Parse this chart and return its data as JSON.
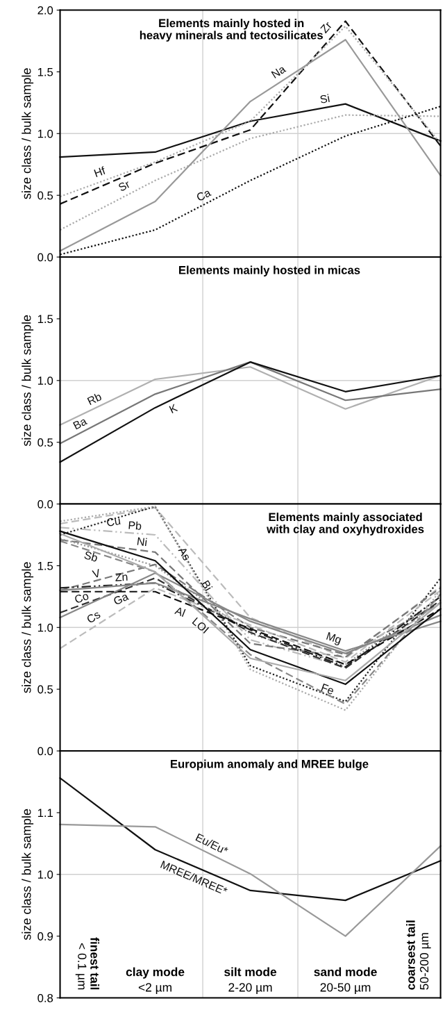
{
  "chart_data": [
    {
      "type": "line",
      "title": "Elements mainly hosted in\nheavy minerals and tectosilicates",
      "ylabel": "size class / bulk sample",
      "categories": [
        null,
        null,
        null,
        null,
        null
      ],
      "ylim": [
        0,
        2.0
      ],
      "yticks": [
        {
          "value": 0,
          "label": "0.0"
        },
        0.5,
        {
          "value": 1,
          "label": "1.0"
        },
        1.5,
        {
          "value": 2,
          "label": "2.0"
        }
      ],
      "tick_labels": "y",
      "grid": false,
      "ref_lines": [
        {
          "axis": "y",
          "value": 1,
          "color": "#d0d0d0"
        }
      ],
      "series": [
        {
          "name": "Si",
          "color": "#111111",
          "line_style": "solid",
          "values": [
            0.81,
            0.85,
            1.1,
            1.24,
            0.94
          ]
        },
        {
          "name": "Zr",
          "color": "#111111",
          "line_style": "dashed",
          "values": [
            0.43,
            0.76,
            1.03,
            1.91,
            0.9
          ]
        },
        {
          "name": "Hf",
          "color": "#aaaaaa",
          "line_style": "dotted",
          "values": [
            0.49,
            0.77,
            1.1,
            1.87,
            0.92
          ]
        },
        {
          "name": "Sr",
          "color": "#aaaaaa",
          "line_style": "dotted",
          "values": [
            0.22,
            0.62,
            0.96,
            1.15,
            1.14
          ]
        },
        {
          "name": "Na",
          "color": "#999999",
          "line_style": "solid",
          "values": [
            0.05,
            0.45,
            1.26,
            1.76,
            0.66
          ]
        },
        {
          "name": "Ca",
          "color": "#111111",
          "line_style": "dotted",
          "values": [
            0.02,
            0.22,
            0.62,
            0.98,
            1.22
          ]
        }
      ]
    },
    {
      "type": "line",
      "title": "Elements mainly hosted in micas",
      "ylabel": "size class / bulk sample",
      "categories": [
        null,
        null,
        null,
        null,
        null
      ],
      "ylim": [
        0,
        2.0
      ],
      "yticks": [
        {
          "value": 0,
          "label": "0.0"
        },
        0.5,
        {
          "value": 1,
          "label": "1.0"
        },
        1.5
      ],
      "tick_labels": "y",
      "grid": false,
      "ref_lines": [
        {
          "axis": "y",
          "value": 1,
          "color": "#d0d0d0"
        }
      ],
      "series": [
        {
          "name": "Rb",
          "color": "#b0b0b0",
          "line_style": "solid",
          "values": [
            0.64,
            1.01,
            1.11,
            0.77,
            1.04
          ]
        },
        {
          "name": "Ba",
          "color": "#777777",
          "line_style": "solid",
          "values": [
            0.49,
            0.89,
            1.15,
            0.84,
            0.93
          ]
        },
        {
          "name": "K",
          "color": "#111111",
          "line_style": "solid",
          "values": [
            0.34,
            0.78,
            1.15,
            0.91,
            1.04
          ]
        }
      ]
    },
    {
      "type": "line",
      "title": "Elements mainly associated\nwith clay and oxyhydroxides",
      "ylabel": "size class / bulk sample",
      "categories": [
        null,
        null,
        null,
        null,
        null
      ],
      "ylim": [
        0,
        2.0
      ],
      "yticks": [
        {
          "value": 0,
          "label": "0.0"
        },
        0.5,
        {
          "value": 1,
          "label": "1.0"
        },
        1.5
      ],
      "tick_labels": "y",
      "grid": false,
      "ref_lines": [
        {
          "axis": "y",
          "value": 1,
          "color": "#d0d0d0"
        }
      ],
      "series": [
        {
          "name": "Cu",
          "color": "#bbbbbb",
          "line_style": "dashed",
          "values": [
            1.84,
            1.97,
            1.08,
            0.75,
            1.33
          ]
        },
        {
          "name": "As",
          "color": "#222222",
          "line_style": "dotted",
          "values": [
            1.75,
            1.98,
            0.69,
            0.4,
            1.4
          ]
        },
        {
          "name": "Bi",
          "color": "#aaaaaa",
          "line_style": "dotted",
          "values": [
            1.86,
            1.98,
            0.66,
            0.33,
            1.3
          ]
        },
        {
          "name": "Pb",
          "color": "#bbbbbb",
          "line_style": "dashdot",
          "values": [
            1.81,
            1.75,
            0.9,
            0.68,
            1.2
          ]
        },
        {
          "name": "Ni",
          "color": "#777777",
          "line_style": "dashed",
          "values": [
            1.71,
            1.61,
            0.87,
            0.76,
            1.32
          ]
        },
        {
          "name": "Sb",
          "color": "#999999",
          "line_style": "dotted",
          "values": [
            1.72,
            1.5,
            0.95,
            0.7,
            1.25
          ]
        },
        {
          "name": "V",
          "color": "#777777",
          "line_style": "dashed",
          "values": [
            1.3,
            1.51,
            1.0,
            0.78,
            1.2
          ]
        },
        {
          "name": "Zn",
          "color": "#222222",
          "line_style": "dashdot",
          "values": [
            1.32,
            1.36,
            0.98,
            0.68,
            1.25
          ]
        },
        {
          "name": "Co",
          "color": "#333333",
          "line_style": "dashed",
          "values": [
            1.12,
            1.4,
            0.96,
            0.67,
            1.22
          ]
        },
        {
          "name": "Ga",
          "color": "#888888",
          "line_style": "solid",
          "values": [
            1.08,
            1.44,
            1.05,
            0.79,
            1.1
          ]
        },
        {
          "name": "Al",
          "color": "#111111",
          "line_style": "dashed",
          "values": [
            1.29,
            1.29,
            0.99,
            0.7,
            1.15
          ]
        },
        {
          "name": "Cs",
          "color": "#bbbbbb",
          "line_style": "dashed",
          "values": [
            0.83,
            1.32,
            1.02,
            0.72,
            1.3
          ]
        },
        {
          "name": "LOI",
          "color": "#888888",
          "line_style": "dashed",
          "values": [
            1.7,
            1.45,
            0.78,
            0.38,
            1.27
          ]
        },
        {
          "name": "Mg",
          "color": "#888888",
          "line_style": "solid",
          "values": [
            1.3,
            1.36,
            1.07,
            0.81,
            1.05
          ]
        },
        {
          "name": "Fe",
          "color": "#111111",
          "line_style": "solid",
          "values": [
            1.78,
            1.54,
            0.82,
            0.54,
            1.15
          ]
        },
        {
          "color": "#aaaaaa",
          "line_style": "solid",
          "values": [
            1.76,
            1.45,
            0.75,
            0.57,
            1.2
          ]
        }
      ]
    },
    {
      "type": "line",
      "title": "Europium anomaly and MREE bulge",
      "ylabel": "size class / bulk sample",
      "categories": [
        "finest tail\n< 0.1 µm",
        "clay mode\n<2 µm",
        "silt mode\n2-20 µm",
        "sand mode\n20-50 µm",
        "coarsest tail\n50-200 µm"
      ],
      "ylim": [
        0.8,
        1.2
      ],
      "yticks": [
        0.8,
        0.9,
        {
          "value": 1,
          "label": "1.0"
        },
        1.1
      ],
      "tick_labels": "y",
      "grid": false,
      "ref_lines": [
        {
          "axis": "y",
          "value": 1,
          "color": "#d0d0d0"
        }
      ],
      "series": [
        {
          "name": "MREE/MREE*",
          "color": "#111111",
          "line_style": "solid",
          "values": [
            1.156,
            1.04,
            0.974,
            0.958,
            1.022
          ]
        },
        {
          "name": "Eu/Eu*",
          "color": "#999999",
          "line_style": "solid",
          "values": [
            1.081,
            1.077,
            1.001,
            0.9,
            1.046
          ]
        }
      ]
    }
  ]
}
